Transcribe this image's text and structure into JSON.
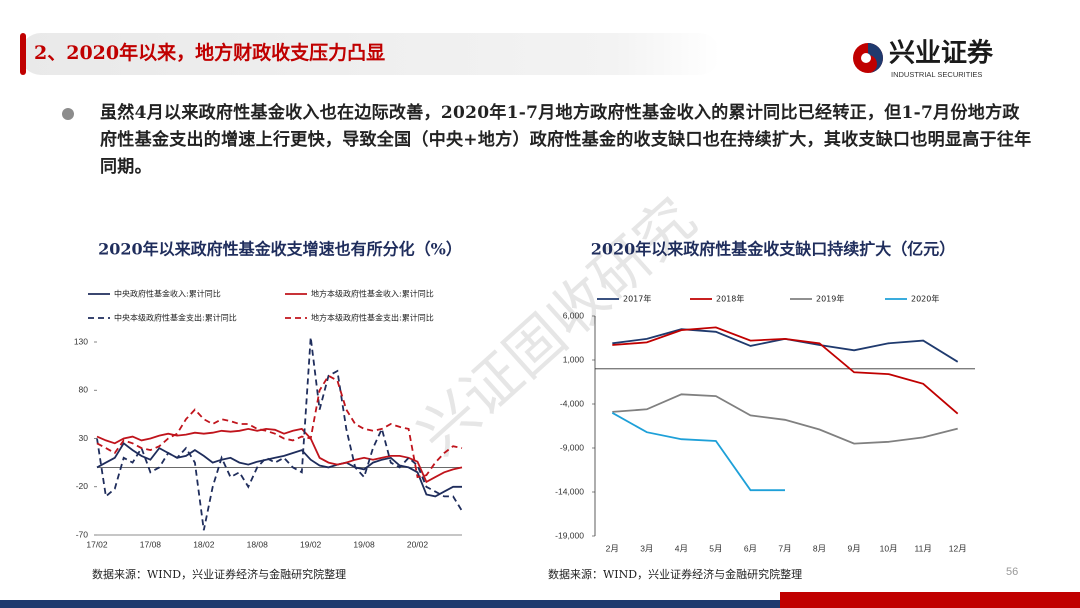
{
  "header": {
    "title": "2、2020年以来，地方财政收支压力凸显",
    "logo_text": "兴业证券",
    "logo_subtext": "INDUSTRIAL SECURITIES"
  },
  "bullet": "虽然4月以来政府性基金收入也在边际改善，2020年1-7月地方政府性基金收入的累计同比已经转正，但1-7月份地方政府性基金支出的增速上行更快，导致全国（中央+地方）政府性基金的收支缺口也在持续扩大，其收支缺口也明显高于往年同期。",
  "watermark": "兴证固收研究",
  "chart_data": [
    {
      "type": "line",
      "title": "2020年以来政府性基金收支增速也有所分化（%）",
      "categories": [
        "17/02",
        null,
        null,
        null,
        null,
        null,
        "17/08",
        null,
        null,
        null,
        null,
        null,
        "18/02",
        null,
        null,
        null,
        null,
        null,
        "18/08",
        null,
        null,
        null,
        null,
        null,
        "19/02",
        null,
        null,
        null,
        null,
        null,
        "19/08",
        null,
        null,
        null,
        null,
        null,
        "20/02",
        null,
        null,
        null,
        null,
        null
      ],
      "ylim": [
        -70,
        130
      ],
      "yticks": [
        -70,
        -20,
        30,
        80,
        130
      ],
      "grid": false,
      "series": [
        {
          "name": "中央政府性基金收入:累计同比",
          "color": "#1f2d5c",
          "linestyle": "solid",
          "values": [
            0,
            5,
            10,
            25,
            18,
            12,
            8,
            20,
            15,
            10,
            12,
            18,
            12,
            5,
            8,
            10,
            5,
            3,
            6,
            8,
            10,
            12,
            15,
            18,
            8,
            2,
            0,
            3,
            5,
            0,
            -2,
            5,
            8,
            10,
            2,
            0,
            -5,
            -28,
            -30,
            -25,
            -20,
            -20
          ]
        },
        {
          "name": "地方本级政府性基金收入:累计同比",
          "color": "#c0141c",
          "linestyle": "solid",
          "values": [
            32,
            28,
            25,
            30,
            32,
            28,
            30,
            33,
            35,
            33,
            34,
            36,
            35,
            36,
            38,
            37,
            38,
            40,
            38,
            40,
            39,
            35,
            38,
            40,
            30,
            10,
            5,
            3,
            5,
            8,
            10,
            8,
            10,
            12,
            12,
            10,
            6,
            -15,
            -10,
            -5,
            -2,
            0
          ]
        },
        {
          "name": "中央本级政府性基金支出:累计同比",
          "color": "#1f2d5c",
          "linestyle": "dashed",
          "values": [
            30,
            -30,
            -22,
            10,
            5,
            20,
            -5,
            0,
            15,
            10,
            20,
            5,
            -65,
            -20,
            10,
            -10,
            -5,
            -20,
            0,
            10,
            5,
            10,
            0,
            -5,
            135,
            60,
            95,
            100,
            40,
            0,
            -10,
            20,
            40,
            5,
            0,
            10,
            2,
            -20,
            -25,
            -30,
            -30,
            -45
          ]
        },
        {
          "name": "地方本级政府性基金支出:累计同比",
          "color": "#c0141c",
          "linestyle": "dashed",
          "values": [
            25,
            20,
            15,
            28,
            25,
            20,
            18,
            22,
            30,
            35,
            50,
            60,
            50,
            45,
            50,
            48,
            45,
            45,
            40,
            38,
            35,
            30,
            28,
            32,
            30,
            80,
            95,
            90,
            60,
            45,
            40,
            38,
            40,
            45,
            42,
            40,
            -10,
            -8,
            5,
            15,
            22,
            20
          ]
        }
      ],
      "source": "数据来源：WIND，兴业证券经济与金融研究院整理"
    },
    {
      "type": "line",
      "title": "2020年以来政府性基金收支缺口持续扩大（亿元）",
      "categories": [
        "2月",
        "3月",
        "4月",
        "5月",
        "6月",
        "7月",
        "8月",
        "9月",
        "10月",
        "11月",
        "12月"
      ],
      "ylim": [
        -19000,
        6000
      ],
      "yticks": [
        {
          "value": -19000,
          "label": "-19,000"
        },
        {
          "value": -14000,
          "label": "-14,000"
        },
        {
          "value": -9000,
          "label": "-9,000"
        },
        {
          "value": -4000,
          "label": "-4,000"
        },
        {
          "value": 1000,
          "label": "1,000"
        },
        {
          "value": 6000,
          "label": "6,000"
        }
      ],
      "grid": false,
      "series": [
        {
          "name": "2017年",
          "color": "#1f3a6e",
          "linestyle": "solid",
          "values": [
            2900,
            3400,
            4500,
            4200,
            2600,
            3400,
            2700,
            2100,
            2900,
            3200,
            800
          ]
        },
        {
          "name": "2018年",
          "color": "#c00000",
          "linestyle": "solid",
          "values": [
            2700,
            3000,
            4400,
            4700,
            3200,
            3400,
            2900,
            -400,
            -600,
            -1700,
            -5100
          ]
        },
        {
          "name": "2019年",
          "color": "#808080",
          "linestyle": "solid",
          "values": [
            -4900,
            -4600,
            -2900,
            -3100,
            -5300,
            -5800,
            -6900,
            -8500,
            -8300,
            -7800,
            -6800
          ]
        },
        {
          "name": "2020年",
          "color": "#1ea0d8",
          "linestyle": "solid",
          "values": [
            -5000,
            -7200,
            -8000,
            -8200,
            -13800,
            -13800,
            null,
            null,
            null,
            null,
            null
          ]
        }
      ],
      "source": "数据来源：WIND，兴业证券经济与金融研究院整理"
    }
  ],
  "page_number": 56
}
